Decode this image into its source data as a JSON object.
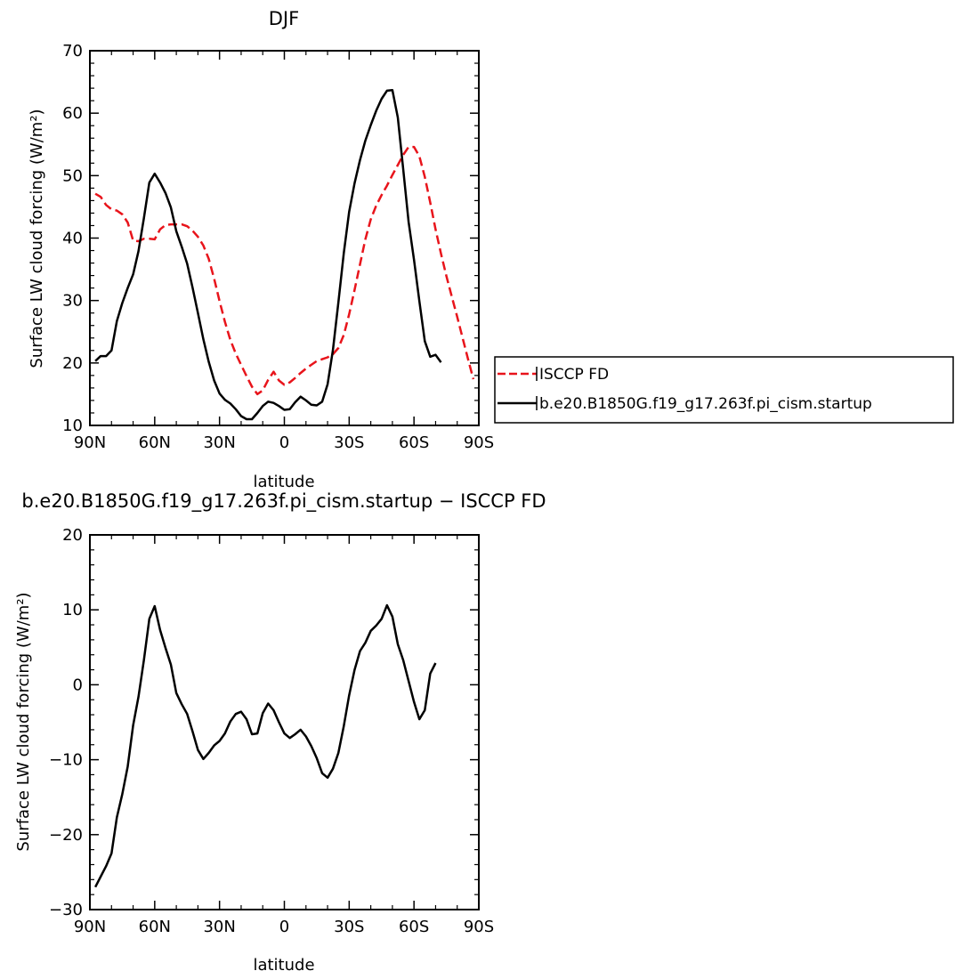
{
  "chart_data": [
    {
      "type": "line",
      "title": "DJF",
      "xlabel": "latitude",
      "ylabel": "Surface LW cloud forcing (W/m²)",
      "xlim": [
        -90,
        90
      ],
      "ylim": [
        10,
        70
      ],
      "xticks": [
        -90,
        -60,
        -30,
        0,
        30,
        60,
        90
      ],
      "xtick_labels": [
        "90N",
        "60N",
        "30N",
        "0",
        "30S",
        "60S",
        "90S"
      ],
      "yticks": [
        10,
        20,
        30,
        40,
        50,
        60,
        70
      ],
      "ytick_labels": [
        "10",
        "20",
        "30",
        "40",
        "50",
        "60",
        "70"
      ],
      "legend_position": "right",
      "series": [
        {
          "name": "ISCCP FD",
          "color": "#e8141b",
          "dash": "dashed",
          "points": [
            [
              -87.5,
              47.1
            ],
            [
              -85,
              46.6
            ],
            [
              -82.5,
              45.3
            ],
            [
              -80,
              44.6
            ],
            [
              -77.5,
              44.4
            ],
            [
              -75,
              43.8
            ],
            [
              -72.5,
              42.5
            ],
            [
              -70,
              39.6
            ],
            [
              -67.5,
              39.5
            ],
            [
              -65,
              39.9
            ],
            [
              -62.5,
              39.9
            ],
            [
              -60,
              39.8
            ],
            [
              -57.5,
              41.4
            ],
            [
              -55,
              42.1
            ],
            [
              -52.5,
              42.2
            ],
            [
              -50,
              42.2
            ],
            [
              -47.5,
              42.2
            ],
            [
              -45,
              41.9
            ],
            [
              -42.5,
              41.2
            ],
            [
              -40,
              40.2
            ],
            [
              -37.5,
              38.8
            ],
            [
              -35,
              36.7
            ],
            [
              -32.5,
              33.5
            ],
            [
              -30,
              29.9
            ],
            [
              -27.5,
              26.6
            ],
            [
              -25,
              23.7
            ],
            [
              -22.5,
              21.5
            ],
            [
              -20,
              19.7
            ],
            [
              -17.5,
              17.9
            ],
            [
              -15,
              16.2
            ],
            [
              -12.5,
              15.0
            ],
            [
              -10,
              15.6
            ],
            [
              -7.5,
              17.3
            ],
            [
              -5,
              18.6
            ],
            [
              -2.5,
              17.2
            ],
            [
              0,
              16.5
            ],
            [
              2.5,
              16.9
            ],
            [
              5,
              17.6
            ],
            [
              7.5,
              18.4
            ],
            [
              10,
              19.1
            ],
            [
              12.5,
              19.7
            ],
            [
              15,
              20.3
            ],
            [
              17.5,
              20.6
            ],
            [
              20,
              20.9
            ],
            [
              22.5,
              21.4
            ],
            [
              25,
              22.4
            ],
            [
              27.5,
              24.5
            ],
            [
              30,
              27.8
            ],
            [
              32.5,
              31.7
            ],
            [
              35,
              35.8
            ],
            [
              37.5,
              39.8
            ],
            [
              40,
              43.0
            ],
            [
              42.5,
              45.2
            ],
            [
              45,
              46.9
            ],
            [
              47.5,
              48.4
            ],
            [
              50,
              50.1
            ],
            [
              52.5,
              51.7
            ],
            [
              55,
              53.3
            ],
            [
              57.5,
              54.6
            ],
            [
              60,
              54.6
            ],
            [
              62.5,
              53.1
            ],
            [
              65,
              49.8
            ],
            [
              67.5,
              45.7
            ],
            [
              70,
              41.4
            ],
            [
              72.5,
              37.5
            ],
            [
              75,
              33.9
            ],
            [
              77.5,
              30.6
            ],
            [
              80,
              27.4
            ],
            [
              82.5,
              24.0
            ],
            [
              85,
              20.6
            ],
            [
              87.5,
              17.4
            ]
          ]
        },
        {
          "name": "b.e20.B1850G.f19_g17.263f.pi_cism.startup",
          "color": "#000000",
          "dash": "solid",
          "points": [
            [
              -87.5,
              20.3
            ],
            [
              -85,
              21.1
            ],
            [
              -82.5,
              21.1
            ],
            [
              -80,
              22.0
            ],
            [
              -77.5,
              26.7
            ],
            [
              -75,
              29.6
            ],
            [
              -72.5,
              32.0
            ],
            [
              -70,
              34.2
            ],
            [
              -67.5,
              37.9
            ],
            [
              -65,
              43.2
            ],
            [
              -62.5,
              48.9
            ],
            [
              -60,
              50.3
            ],
            [
              -57.5,
              48.9
            ],
            [
              -55,
              47.2
            ],
            [
              -52.5,
              44.9
            ],
            [
              -50,
              41.1
            ],
            [
              -47.5,
              38.6
            ],
            [
              -45,
              35.9
            ],
            [
              -42.5,
              32.1
            ],
            [
              -40,
              28.0
            ],
            [
              -37.5,
              23.8
            ],
            [
              -35,
              20.2
            ],
            [
              -32.5,
              17.2
            ],
            [
              -30,
              15.1
            ],
            [
              -27.5,
              14.1
            ],
            [
              -25,
              13.5
            ],
            [
              -22.5,
              12.6
            ],
            [
              -20,
              11.5
            ],
            [
              -17.5,
              11.0
            ],
            [
              -15,
              11.0
            ],
            [
              -12.5,
              12.0
            ],
            [
              -10,
              13.1
            ],
            [
              -7.5,
              13.8
            ],
            [
              -5,
              13.6
            ],
            [
              -2.5,
              13.1
            ],
            [
              0,
              12.5
            ],
            [
              2.5,
              12.6
            ],
            [
              5,
              13.7
            ],
            [
              7.5,
              14.6
            ],
            [
              10,
              14.0
            ],
            [
              12.5,
              13.3
            ],
            [
              15,
              13.2
            ],
            [
              17.5,
              13.8
            ],
            [
              20,
              16.6
            ],
            [
              22.5,
              22.1
            ],
            [
              25,
              29.7
            ],
            [
              27.5,
              37.6
            ],
            [
              30,
              44.2
            ],
            [
              32.5,
              48.8
            ],
            [
              35,
              52.5
            ],
            [
              37.5,
              55.6
            ],
            [
              40,
              58.1
            ],
            [
              42.5,
              60.4
            ],
            [
              45,
              62.3
            ],
            [
              47.5,
              63.6
            ],
            [
              50,
              63.7
            ],
            [
              52.5,
              59.3
            ],
            [
              55,
              51.1
            ],
            [
              57.5,
              42.6
            ],
            [
              60,
              36.5
            ],
            [
              62.5,
              29.9
            ],
            [
              65,
              23.5
            ],
            [
              67.5,
              21.0
            ],
            [
              70,
              21.3
            ],
            [
              72.5,
              20.1
            ]
          ]
        }
      ]
    },
    {
      "type": "line",
      "title": "b.e20.B1850G.f19_g17.263f.pi_cism.startup − ISCCP FD",
      "xlabel": "latitude",
      "ylabel": "Surface LW cloud forcing (W/m²)",
      "xlim": [
        -90,
        90
      ],
      "ylim": [
        -30,
        20
      ],
      "xticks": [
        -90,
        -60,
        -30,
        0,
        30,
        60,
        90
      ],
      "xtick_labels": [
        "90N",
        "60N",
        "30N",
        "0",
        "30S",
        "60S",
        "90S"
      ],
      "yticks": [
        -30,
        -20,
        -10,
        0,
        10,
        20
      ],
      "ytick_labels": [
        "−30",
        "−20",
        "−10",
        "0",
        "10",
        "20"
      ],
      "series": [
        {
          "color": "#000000",
          "dash": "solid",
          "points": [
            [
              -87.5,
              -27.0
            ],
            [
              -85,
              -25.6
            ],
            [
              -82.5,
              -24.2
            ],
            [
              -80,
              -22.5
            ],
            [
              -77.5,
              -17.7
            ],
            [
              -75,
              -14.6
            ],
            [
              -72.5,
              -10.9
            ],
            [
              -70,
              -5.4
            ],
            [
              -67.5,
              -1.6
            ],
            [
              -65,
              3.3
            ],
            [
              -62.5,
              8.8
            ],
            [
              -60,
              10.5
            ],
            [
              -57.5,
              7.3
            ],
            [
              -55,
              4.9
            ],
            [
              -52.5,
              2.7
            ],
            [
              -50,
              -1.1
            ],
            [
              -47.5,
              -2.6
            ],
            [
              -45,
              -3.9
            ],
            [
              -42.5,
              -6.2
            ],
            [
              -40,
              -8.7
            ],
            [
              -37.5,
              -9.9
            ],
            [
              -35,
              -9.1
            ],
            [
              -32.5,
              -8.1
            ],
            [
              -30,
              -7.5
            ],
            [
              -27.5,
              -6.5
            ],
            [
              -25,
              -4.9
            ],
            [
              -22.5,
              -3.9
            ],
            [
              -20,
              -3.6
            ],
            [
              -17.5,
              -4.6
            ],
            [
              -15,
              -6.6
            ],
            [
              -12.5,
              -6.5
            ],
            [
              -10,
              -3.8
            ],
            [
              -7.5,
              -2.5
            ],
            [
              -5,
              -3.4
            ],
            [
              -2.5,
              -5.0
            ],
            [
              0,
              -6.5
            ],
            [
              2.5,
              -7.1
            ],
            [
              5,
              -6.6
            ],
            [
              7.5,
              -6.0
            ],
            [
              10,
              -6.9
            ],
            [
              12.5,
              -8.2
            ],
            [
              15,
              -9.8
            ],
            [
              17.5,
              -11.8
            ],
            [
              20,
              -12.4
            ],
            [
              22.5,
              -11.2
            ],
            [
              25,
              -9.1
            ],
            [
              27.5,
              -5.5
            ],
            [
              30,
              -1.4
            ],
            [
              32.5,
              2.0
            ],
            [
              35,
              4.5
            ],
            [
              37.5,
              5.6
            ],
            [
              40,
              7.2
            ],
            [
              42.5,
              7.9
            ],
            [
              45,
              8.8
            ],
            [
              47.5,
              10.6
            ],
            [
              50,
              9.1
            ],
            [
              52.5,
              5.4
            ],
            [
              55,
              3.3
            ],
            [
              57.5,
              0.5
            ],
            [
              60,
              -2.3
            ],
            [
              62.5,
              -4.6
            ],
            [
              65,
              -3.4
            ],
            [
              67.5,
              1.5
            ],
            [
              70,
              2.9
            ]
          ]
        }
      ]
    }
  ]
}
